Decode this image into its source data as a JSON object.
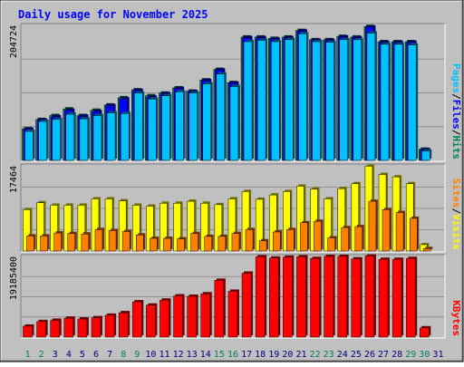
{
  "chart_data": [
    {
      "type": "bar",
      "title": "Daily usage for November 2025",
      "categories": [
        "1",
        "2",
        "3",
        "4",
        "5",
        "6",
        "7",
        "8",
        "9",
        "10",
        "11",
        "12",
        "13",
        "14",
        "15",
        "16",
        "17",
        "18",
        "19",
        "20",
        "21",
        "22",
        "23",
        "24",
        "25",
        "26",
        "27",
        "28",
        "29",
        "30",
        "31"
      ],
      "weekend_day_color": "#00805c",
      "weekday_day_color": "#000080",
      "weekend_days": [
        1,
        2,
        8,
        9,
        15,
        16,
        22,
        23,
        29,
        30
      ],
      "panels": [
        {
          "name": "hits-files-pages",
          "ytick_label": "204724",
          "ylim": [
            0,
            204724
          ],
          "legend": [
            {
              "label": "Hits",
              "color": "#00805c"
            },
            {
              "label": "Files",
              "color": "#0000ff"
            },
            {
              "label": "Pages",
              "color": "#00c0ff"
            }
          ],
          "series": [
            {
              "name": "Hits",
              "color": "#00805c",
              "values": [
                48000,
                62000,
                68000,
                78000,
                68000,
                76000,
                84000,
                95000,
                107000,
                98000,
                102000,
                110000,
                105000,
                122000,
                138000,
                118000,
                187000,
                187000,
                185000,
                187000,
                197000,
                183000,
                183000,
                188000,
                187000,
                203000,
                180000,
                180000,
                180000,
                17000,
                0
              ]
            },
            {
              "name": "Files",
              "color": "#0000ff",
              "values": [
                47000,
                61000,
                66000,
                76000,
                67000,
                74000,
                83000,
                93000,
                106000,
                96000,
                101000,
                109000,
                104000,
                121000,
                137000,
                117000,
                186000,
                186000,
                184000,
                186000,
                196000,
                182000,
                182000,
                187000,
                186000,
                202000,
                179000,
                179000,
                179000,
                16000,
                0
              ]
            },
            {
              "name": "Pages",
              "color": "#00c0ff",
              "values": [
                44000,
                59000,
                62000,
                70000,
                63000,
                68000,
                72000,
                71000,
                102000,
                93000,
                98000,
                104000,
                102000,
                116000,
                131000,
                112000,
                180000,
                182000,
                180000,
                183000,
                192000,
                180000,
                179000,
                183000,
                183000,
                193000,
                176000,
                176000,
                175000,
                14000,
                0
              ]
            }
          ]
        },
        {
          "name": "visits-sites",
          "ytick_label": "17464",
          "ylim": [
            0,
            17464
          ],
          "legend": [
            {
              "label": "Visits",
              "color": "#ffff00"
            },
            {
              "label": "Sites",
              "color": "#ff8000"
            }
          ],
          "series": [
            {
              "name": "Visits",
              "color": "#ffff00",
              "values": [
                8500,
                9900,
                9400,
                9400,
                9400,
                10700,
                10700,
                10300,
                9400,
                9200,
                9800,
                9800,
                10200,
                9800,
                9500,
                10700,
                12200,
                10600,
                11500,
                12200,
                13300,
                12700,
                10700,
                12800,
                13800,
                17400,
                15700,
                15200,
                13800,
                1300,
                0
              ]
            },
            {
              "name": "Sites",
              "color": "#ff8000",
              "values": [
                3100,
                3100,
                3700,
                3600,
                3500,
                4400,
                4200,
                4000,
                3300,
                2600,
                2600,
                2500,
                3600,
                3000,
                3000,
                3600,
                4400,
                2100,
                3900,
                4400,
                5800,
                6100,
                2700,
                4800,
                5000,
                10200,
                8500,
                7900,
                6700,
                500,
                0
              ]
            }
          ]
        },
        {
          "name": "kbytes",
          "ytick_label": "19185400",
          "ylim": [
            0,
            19185400
          ],
          "legend": [
            {
              "label": "KBytes",
              "color": "#ff0000"
            }
          ],
          "series": [
            {
              "name": "KBytes",
              "color": "#ff0000",
              "values": [
                2600000,
                3700000,
                4000000,
                4500000,
                4300000,
                4600000,
                5200000,
                5800000,
                8400000,
                7600000,
                8800000,
                9800000,
                9700000,
                10300000,
                13500000,
                10900000,
                15200000,
                19100000,
                18800000,
                19000000,
                19100000,
                18700000,
                19200000,
                19200000,
                18600000,
                19300000,
                18500000,
                18500000,
                18700000,
                2200000,
                0
              ]
            }
          ]
        }
      ]
    }
  ]
}
